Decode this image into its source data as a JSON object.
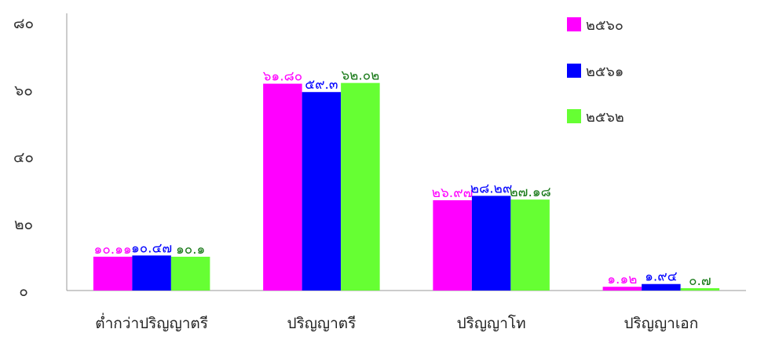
{
  "chart_data": {
    "type": "bar",
    "categories": [
      "ต่ำกว่าปริญญาตรี",
      "ปริญญาตรี",
      "ปริญญาโท",
      "ปริญญาเอก"
    ],
    "series": [
      {
        "name": "๒๕๖๐",
        "color": "#ff00ff",
        "label_color": "#ff00ff",
        "values": [
          10.11,
          61.8,
          26.97,
          1.12
        ],
        "labels": [
          "๑๐.๑๑",
          "๖๑.๘๐",
          "๒๖.๙๗",
          "๑.๑๒"
        ]
      },
      {
        "name": "๒๕๖๑",
        "color": "#0000ff",
        "label_color": "#0000ff",
        "values": [
          10.47,
          59.3,
          28.29,
          1.94
        ],
        "labels": [
          "๑๐.๔๗",
          "๕๙.๓",
          "๒๘.๒๙",
          "๑.๙๔"
        ]
      },
      {
        "name": "๒๕๖๒",
        "color": "#66ff33",
        "label_color": "#1a7a1a",
        "values": [
          10.1,
          62.02,
          27.18,
          0.7
        ],
        "labels": [
          "๑๐.๑",
          "๖๒.๐๒",
          "๒๗.๑๘",
          "๐.๗"
        ]
      }
    ],
    "y_ticks": [
      0,
      20,
      40,
      60,
      80
    ],
    "y_tick_labels": [
      "๐",
      "๒๐",
      "๔๐",
      "๖๐",
      "๘๐"
    ],
    "ylim": [
      0,
      80
    ],
    "grid": false,
    "legend_position": "top-right"
  }
}
